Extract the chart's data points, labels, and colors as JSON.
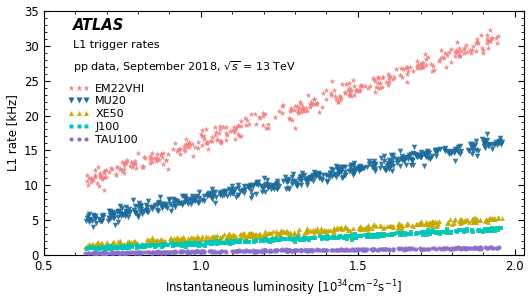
{
  "xlabel": "Instantaneous luminosity [$10^{34}$cm$^{-2}$s$^{-1}$]",
  "ylabel": "L1 rate [kHz]",
  "xlim": [
    0.57,
    2.03
  ],
  "ylim": [
    0,
    35
  ],
  "yticks": [
    0,
    5,
    10,
    15,
    20,
    25,
    30,
    35
  ],
  "xticks": [
    0.5,
    1.0,
    1.5,
    2.0
  ],
  "series": [
    {
      "label": "EM22VHI",
      "color": "#F08080",
      "marker": "*",
      "markersize": 4.5,
      "slope": 15.5,
      "intercept": 0.8,
      "noise": 0.7,
      "n_points": 350,
      "x_start": 0.63,
      "x_end": 1.96
    },
    {
      "label": "MU20",
      "color": "#1C6B9A",
      "marker": "v",
      "markersize": 4.0,
      "slope": 8.5,
      "intercept": -0.3,
      "noise": 0.5,
      "n_points": 500,
      "x_start": 0.63,
      "x_end": 1.96
    },
    {
      "label": "XE50",
      "color": "#C8A800",
      "marker": "^",
      "markersize": 3.5,
      "slope": 2.9,
      "intercept": -0.4,
      "noise": 0.18,
      "n_points": 400,
      "x_start": 0.63,
      "x_end": 1.96
    },
    {
      "label": "J100",
      "color": "#00C8B4",
      "marker": "s",
      "markersize": 3.0,
      "slope": 2.15,
      "intercept": -0.45,
      "noise": 0.13,
      "n_points": 400,
      "x_start": 0.63,
      "x_end": 1.96
    },
    {
      "label": "TAU100",
      "color": "#8B6FCC",
      "marker": "o",
      "markersize": 3.0,
      "slope": 0.6,
      "intercept": -0.05,
      "noise": 0.06,
      "n_points": 400,
      "x_start": 0.63,
      "x_end": 1.96
    }
  ],
  "background_color": "#ffffff"
}
